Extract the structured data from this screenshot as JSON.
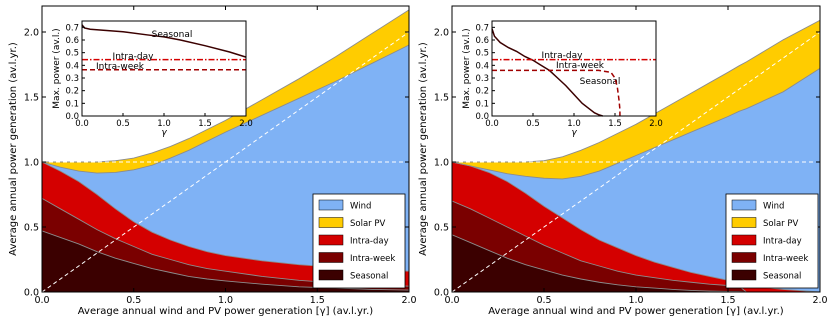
{
  "chart_data": [
    {
      "type": "area",
      "xlabel": "Average annual wind and PV power generation [γ] (av.l.yr.)",
      "ylabel": "Average annual power generation (av.l.yr.)",
      "xlim": [
        0,
        2
      ],
      "ylim": [
        0,
        2.2
      ],
      "xticks": [
        "0.0",
        "0.5",
        "1.0",
        "1.5",
        "2.0"
      ],
      "yticks": [
        "0.0",
        "0.5",
        "1.0",
        "1.5",
        "2.0"
      ],
      "legend_position": "lower-right",
      "x": [
        0,
        0.1,
        0.2,
        0.3,
        0.4,
        0.5,
        0.6,
        0.7,
        0.8,
        0.9,
        1.0,
        1.2,
        1.4,
        1.6,
        1.8,
        2.0
      ],
      "series": [
        {
          "name": "Seasonal",
          "color": "#3b0000",
          "y": [
            0.47,
            0.42,
            0.37,
            0.31,
            0.26,
            0.22,
            0.18,
            0.15,
            0.12,
            0.1,
            0.085,
            0.06,
            0.04,
            0.03,
            0.02,
            0.015
          ]
        },
        {
          "name": "Intra-week",
          "color": "#7a0000",
          "y": [
            0.72,
            0.64,
            0.56,
            0.48,
            0.41,
            0.35,
            0.29,
            0.25,
            0.21,
            0.18,
            0.16,
            0.12,
            0.09,
            0.07,
            0.055,
            0.045
          ]
        },
        {
          "name": "Intra-day",
          "color": "#d40000",
          "y": [
            1.0,
            0.93,
            0.85,
            0.75,
            0.64,
            0.54,
            0.46,
            0.4,
            0.35,
            0.31,
            0.28,
            0.24,
            0.21,
            0.19,
            0.17,
            0.16
          ]
        },
        {
          "name": "Wind",
          "color": "#7fb2f5",
          "y": [
            1.0,
            0.96,
            0.93,
            0.915,
            0.92,
            0.94,
            0.975,
            1.03,
            1.09,
            1.16,
            1.23,
            1.36,
            1.49,
            1.62,
            1.76,
            1.9
          ]
        },
        {
          "name": "Solar PV",
          "color": "#ffcc00",
          "y": [
            1.0,
            1.0,
            1.0,
            1.0,
            1.01,
            1.03,
            1.07,
            1.12,
            1.18,
            1.25,
            1.32,
            1.48,
            1.64,
            1.81,
            1.99,
            2.17
          ]
        }
      ],
      "reference_lines": [
        {
          "type": "horizontal",
          "y": 1.0,
          "color": "#ffffff",
          "style": "dashed"
        },
        {
          "type": "diagonal",
          "from": [
            0,
            0
          ],
          "to": [
            2,
            2
          ],
          "color": "#ffffff",
          "style": "dashed"
        }
      ],
      "inset": {
        "ylabel": "Max. power (av.l.)",
        "xlabel": "γ",
        "xlim": [
          0,
          2
        ],
        "ylim": [
          0,
          0.75
        ],
        "xticks": [
          "0.0",
          "0.5",
          "1.0",
          "1.5",
          "2.0"
        ],
        "yticks": [
          "0.0",
          "0.1",
          "0.2",
          "0.3",
          "0.4",
          "0.5",
          "0.6",
          "0.7"
        ],
        "series": [
          {
            "name": "Seasonal",
            "color": "#3b0000",
            "style": "solid",
            "x": [
              0,
              0.03,
              0.1,
              0.3,
              0.5,
              0.8,
              1.0,
              1.2,
              1.5,
              1.8,
              2.0
            ],
            "y": [
              0.72,
              0.695,
              0.685,
              0.675,
              0.665,
              0.64,
              0.625,
              0.6,
              0.555,
              0.505,
              0.465
            ]
          },
          {
            "name": "Intra-day",
            "color": "#d40000",
            "style": "dashdot",
            "x": [
              0,
              2.0
            ],
            "y": [
              0.445,
              0.445
            ]
          },
          {
            "name": "Intra-week",
            "color": "#a00000",
            "style": "dashed",
            "x": [
              0,
              2.0
            ],
            "y": [
              0.365,
              0.365
            ]
          }
        ]
      }
    },
    {
      "type": "area",
      "xlabel": "Average annual wind and PV power generation [γ] (av.l.yr.)",
      "ylabel": "Average annual power generation (av.l.yr.)",
      "xlim": [
        0,
        2
      ],
      "ylim": [
        0,
        2.2
      ],
      "xticks": [
        "0.0",
        "0.5",
        "1.0",
        "1.5",
        "2.0"
      ],
      "yticks": [
        "0.0",
        "0.5",
        "1.0",
        "1.5",
        "2.0"
      ],
      "legend_position": "lower-right",
      "x": [
        0,
        0.1,
        0.2,
        0.3,
        0.4,
        0.5,
        0.6,
        0.7,
        0.8,
        0.9,
        1.0,
        1.1,
        1.2,
        1.3,
        1.4,
        1.5,
        1.56,
        1.6,
        1.8,
        2.0
      ],
      "series": [
        {
          "name": "Seasonal",
          "color": "#3b0000",
          "y": [
            0.44,
            0.38,
            0.32,
            0.26,
            0.21,
            0.17,
            0.13,
            0.1,
            0.075,
            0.055,
            0.04,
            0.03,
            0.02,
            0.012,
            0.007,
            0.004,
            0.003,
            0.0,
            0.0,
            0.0
          ]
        },
        {
          "name": "Intra-week",
          "color": "#7a0000",
          "y": [
            0.7,
            0.64,
            0.57,
            0.5,
            0.43,
            0.36,
            0.3,
            0.24,
            0.2,
            0.16,
            0.13,
            0.11,
            0.09,
            0.075,
            0.06,
            0.05,
            0.045,
            0.0,
            0.0,
            0.0
          ]
        },
        {
          "name": "Intra-day",
          "color": "#d40000",
          "y": [
            1.0,
            0.97,
            0.92,
            0.85,
            0.76,
            0.66,
            0.57,
            0.48,
            0.4,
            0.34,
            0.28,
            0.23,
            0.19,
            0.15,
            0.12,
            0.09,
            0.07,
            0.05,
            0.02,
            0.0
          ]
        },
        {
          "name": "Wind",
          "color": "#7fb2f5",
          "y": [
            1.0,
            0.97,
            0.94,
            0.91,
            0.89,
            0.875,
            0.87,
            0.89,
            0.93,
            0.99,
            1.05,
            1.11,
            1.17,
            1.23,
            1.29,
            1.35,
            1.39,
            1.41,
            1.54,
            1.72
          ]
        },
        {
          "name": "Solar PV",
          "color": "#ffcc00",
          "y": [
            1.0,
            1.0,
            1.0,
            1.0,
            1.0,
            1.01,
            1.04,
            1.09,
            1.15,
            1.22,
            1.29,
            1.37,
            1.45,
            1.53,
            1.61,
            1.69,
            1.74,
            1.77,
            1.94,
            2.09
          ]
        }
      ],
      "reference_lines": [
        {
          "type": "horizontal",
          "y": 1.0,
          "color": "#ffffff",
          "style": "dashed"
        },
        {
          "type": "diagonal",
          "from": [
            0,
            0
          ],
          "to": [
            2,
            2
          ],
          "color": "#ffffff",
          "style": "dashed"
        }
      ],
      "inset": {
        "ylabel": "Max. power (av.l.)",
        "xlabel": "γ",
        "xlim": [
          0,
          2
        ],
        "ylim": [
          0,
          0.75
        ],
        "xticks": [
          "0.0",
          "0.5",
          "1.0",
          "1.5",
          "2.0"
        ],
        "yticks": [
          "0.0",
          "0.1",
          "0.2",
          "0.3",
          "0.4",
          "0.5",
          "0.6",
          "0.7"
        ],
        "series": [
          {
            "name": "Seasonal",
            "color": "#3b0000",
            "style": "solid",
            "x": [
              0,
              0.03,
              0.1,
              0.2,
              0.3,
              0.4,
              0.5,
              0.6,
              0.7,
              0.8,
              0.9,
              1.0,
              1.1,
              1.2,
              1.25,
              1.3,
              1.35
            ],
            "y": [
              0.69,
              0.63,
              0.58,
              0.54,
              0.51,
              0.47,
              0.44,
              0.4,
              0.36,
              0.3,
              0.24,
              0.17,
              0.1,
              0.05,
              0.025,
              0.01,
              0.0
            ]
          },
          {
            "name": "Intra-day",
            "color": "#d40000",
            "style": "dashdot",
            "x": [
              0,
              2.0
            ],
            "y": [
              0.445,
              0.445
            ]
          },
          {
            "name": "Intra-week",
            "color": "#a00000",
            "style": "dashed",
            "x": [
              0,
              0.2,
              0.6,
              1.0,
              1.3,
              1.45,
              1.5,
              1.53,
              1.55,
              1.56,
              1.56
            ],
            "y": [
              0.36,
              0.36,
              0.36,
              0.36,
              0.36,
              0.345,
              0.3,
              0.22,
              0.12,
              0.05,
              0.0
            ]
          }
        ]
      }
    }
  ]
}
